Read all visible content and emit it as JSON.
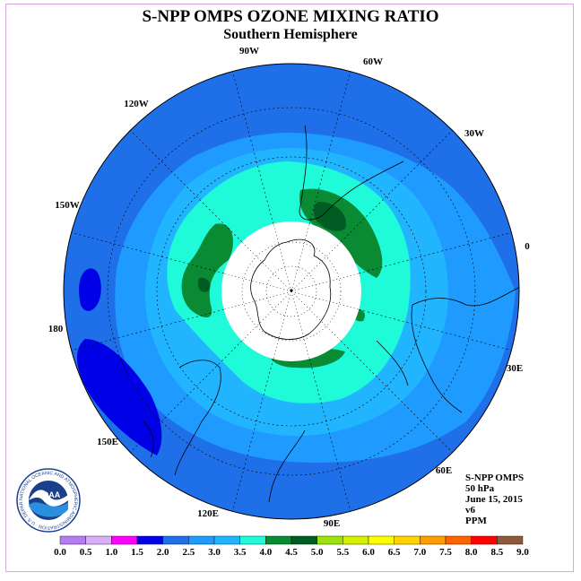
{
  "title": "S-NPP OMPS OZONE MIXING RATIO",
  "subtitle": "Southern Hemisphere",
  "longitude_labels": [
    "90W",
    "60W",
    "30W",
    "0",
    "30E",
    "60E",
    "90E",
    "120E",
    "150E",
    "180",
    "150W",
    "120W"
  ],
  "info": {
    "instrument": "S-NPP OMPS",
    "level": "50 hPa",
    "date": "June 15, 2015",
    "version": "v6",
    "units": "PPM"
  },
  "logo": {
    "text": "NOAA",
    "ring_text": "NATIONAL OCEANIC AND ATMOSPHERIC ADMINISTRATION · U.S. DEPARTMENT OF COMMERCE"
  },
  "colorbar": {
    "tick_labels": [
      "0.0",
      "0.5",
      "1.0",
      "1.5",
      "2.0",
      "2.5",
      "3.0",
      "3.5",
      "4.0",
      "4.5",
      "5.0",
      "5.5",
      "6.0",
      "6.5",
      "7.0",
      "7.5",
      "8.0",
      "8.5",
      "9.0"
    ],
    "colors": [
      "#b57ef0",
      "#d9b0f7",
      "#ff00ff",
      "#0000e6",
      "#1e6fe8",
      "#1f9bff",
      "#22b5ff",
      "#1ffad8",
      "#0b8a34",
      "#005c23",
      "#9be20f",
      "#d4f000",
      "#ffff00",
      "#ffd200",
      "#ff9c00",
      "#ff6400",
      "#ff0000",
      "#8c5a3c"
    ]
  },
  "legend_colors": {
    "bg_ocean": "#1e6fe8",
    "ring_mid": "#1f9bff",
    "ring_inner": "#22b5ff",
    "core": "#1ffad8",
    "green": "#0b8a34",
    "dark_green": "#005c23",
    "low": "#0000e6"
  }
}
